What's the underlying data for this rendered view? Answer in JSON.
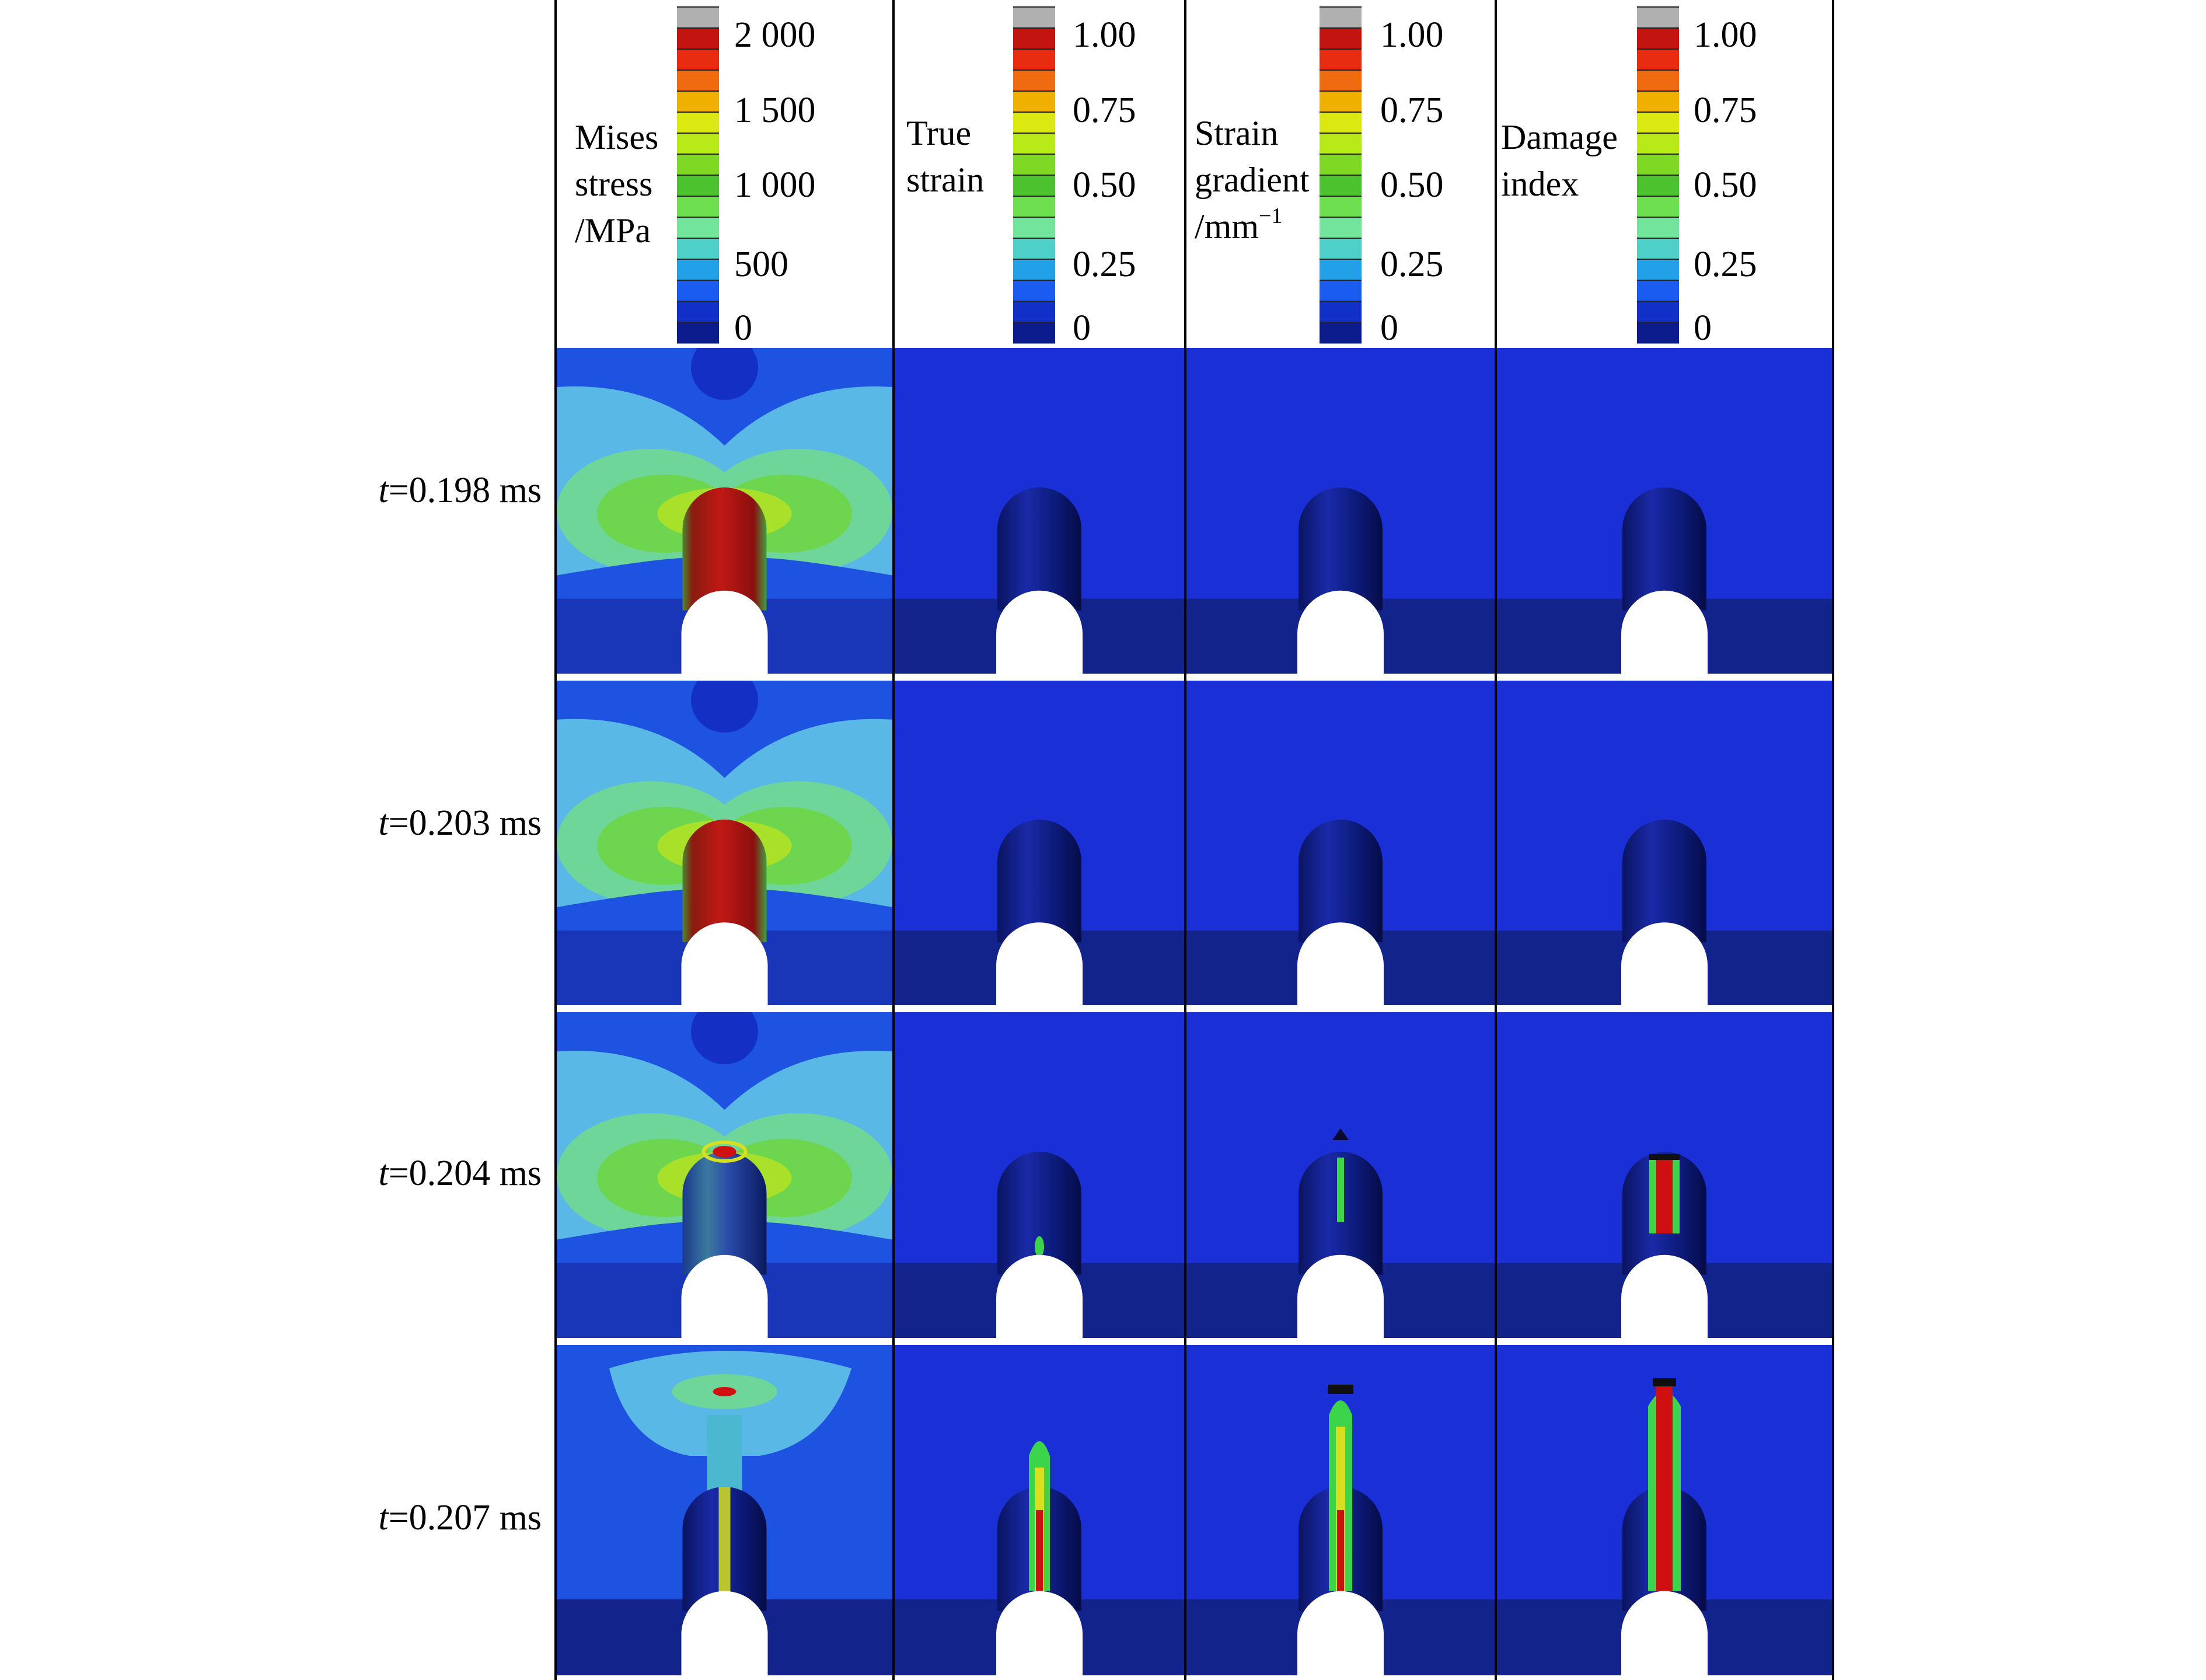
{
  "columns": [
    {
      "id": "mises",
      "label_lines": [
        "Mises",
        "stress",
        "/MPa"
      ],
      "superscript": "",
      "legend_ticks": [
        "2 000",
        "1 500",
        "1 000",
        "500",
        "0"
      ]
    },
    {
      "id": "true-strain",
      "label_lines": [
        "True",
        "strain"
      ],
      "superscript": "",
      "legend_ticks": [
        "1.00",
        "0.75",
        "0.50",
        "0.25",
        "0"
      ]
    },
    {
      "id": "strain-gradient",
      "label_lines": [
        "Strain",
        "gradient",
        "/mm"
      ],
      "superscript": "−1",
      "legend_ticks": [
        "1.00",
        "0.75",
        "0.50",
        "0.25",
        "0"
      ]
    },
    {
      "id": "damage",
      "label_lines": [
        "Damage",
        "index"
      ],
      "superscript": "",
      "legend_ticks": [
        "1.00",
        "0.75",
        "0.50",
        "0.25",
        "0"
      ]
    }
  ],
  "rows": [
    {
      "var": "t",
      "value": "=0.198 ms"
    },
    {
      "var": "t",
      "value": "=0.203 ms"
    },
    {
      "var": "t",
      "value": "=0.204 ms"
    },
    {
      "var": "t",
      "value": "=0.207 ms"
    }
  ],
  "colormap": [
    "#0c1c8c",
    "#1030c8",
    "#1a5cf0",
    "#22a0e8",
    "#4ed0c8",
    "#72e49c",
    "#6ee050",
    "#4cc22e",
    "#7ed824",
    "#b8ea1a",
    "#dce812",
    "#f0b000",
    "#f06a10",
    "#e82c12",
    "#c41410",
    "#b0b0b0"
  ],
  "colors": {
    "background_blue": "#1a2fd6",
    "bottom_band_blue": "#13238c",
    "hole_white": "#ffffff",
    "mises_outer": "#5ab8e6",
    "mises_light_green": "#6fd69a",
    "mises_green": "#6ed64e",
    "mises_dark_green": "#3cc03c",
    "mises_yellow_green": "#a9e02a",
    "mises_red": "#b01010",
    "crack_red": "#d01010",
    "crack_yellow": "#d6e020",
    "crack_green": "#3cd44a"
  }
}
